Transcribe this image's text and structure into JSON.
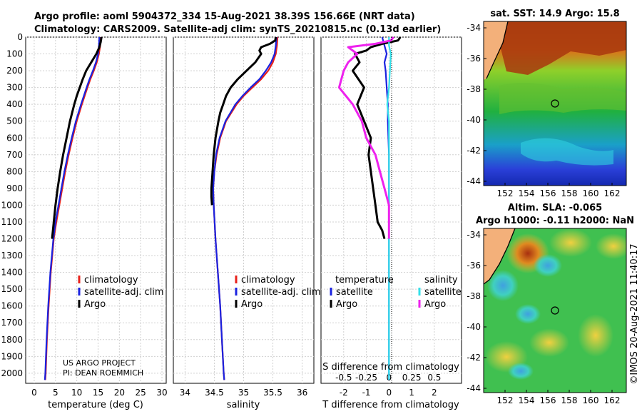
{
  "header": {
    "line1": "Argo profile: aoml 5904372_334 15-Aug-2021 38.39S 156.66E (NRT data)",
    "line2": "Climatology: CARS2009. Satellite-adj clim: synTS_20210815.nc (0.13d earlier)"
  },
  "colors": {
    "climatology": "#e8201a",
    "satellite": "#1a22e0",
    "argo": "#000000",
    "sal_satellite": "#33e0ea",
    "sal_argo": "#ee22ee"
  },
  "depth_ticks": [
    "0",
    "100",
    "200",
    "300",
    "400",
    "500",
    "600",
    "700",
    "800",
    "900",
    "1000",
    "1100",
    "1200",
    "1300",
    "1400",
    "1500",
    "1600",
    "1700",
    "1800",
    "1900",
    "2000"
  ],
  "chart_data": [
    {
      "type": "line",
      "name": "temperature",
      "xlabel": "temperature (deg C)",
      "ylabel": "depth",
      "xlim": [
        -2,
        31
      ],
      "ylim": [
        2060,
        0
      ],
      "xticks": [
        "0",
        "5",
        "10",
        "15",
        "20",
        "25",
        "30"
      ],
      "legend": [
        "climatology",
        "satellite-adj. clim",
        "Argo"
      ],
      "series": [
        {
          "name": "climatology",
          "depth": [
            0,
            50,
            100,
            150,
            200,
            250,
            300,
            400,
            500,
            600,
            700,
            800,
            900,
            1000,
            1100,
            1200,
            1400,
            1600,
            1800,
            2000,
            2040
          ],
          "values": [
            15.6,
            15.5,
            15.2,
            14.7,
            14.0,
            13.2,
            12.5,
            11.2,
            10.0,
            9.0,
            8.1,
            7.3,
            6.6,
            5.9,
            5.2,
            4.6,
            3.9,
            3.4,
            3.0,
            2.7,
            2.6
          ]
        },
        {
          "name": "satellite-adj. clim",
          "depth": [
            0,
            50,
            100,
            150,
            200,
            250,
            300,
            400,
            500,
            600,
            700,
            800,
            900,
            1000,
            1100,
            1200,
            1400,
            1600,
            1800,
            2000,
            2040
          ],
          "values": [
            15.3,
            15.2,
            15.0,
            14.5,
            13.8,
            13.0,
            12.3,
            11.0,
            9.8,
            8.8,
            7.9,
            7.1,
            6.4,
            5.7,
            5.0,
            4.5,
            3.8,
            3.3,
            2.9,
            2.6,
            2.5
          ]
        },
        {
          "name": "Argo",
          "depth": [
            0,
            30,
            60,
            100,
            150,
            200,
            250,
            300,
            350,
            400,
            500,
            600,
            700,
            800,
            900,
            1000,
            1100,
            1200
          ],
          "values": [
            15.8,
            15.6,
            15.3,
            14.6,
            13.4,
            12.2,
            11.4,
            10.7,
            10.0,
            9.4,
            8.4,
            7.6,
            6.8,
            6.1,
            5.5,
            5.0,
            4.6,
            4.2
          ]
        }
      ]
    },
    {
      "type": "line",
      "name": "salinity",
      "xlabel": "salinity",
      "ylabel": "depth",
      "xlim": [
        33.8,
        36.2
      ],
      "ylim": [
        2060,
        0
      ],
      "xticks": [
        "34",
        "34.5",
        "35",
        "35.5",
        "36"
      ],
      "legend": [
        "climatology",
        "satellite-adj. clim",
        "Argo"
      ],
      "series": [
        {
          "name": "climatology",
          "depth": [
            0,
            50,
            100,
            150,
            200,
            250,
            300,
            350,
            400,
            500,
            600,
            700,
            800,
            900,
            1000,
            1200,
            1400,
            1600,
            1800,
            2000,
            2040
          ],
          "values": [
            35.58,
            35.57,
            35.55,
            35.5,
            35.42,
            35.3,
            35.15,
            35.0,
            34.88,
            34.7,
            34.6,
            34.54,
            34.5,
            34.48,
            34.49,
            34.52,
            34.56,
            34.6,
            34.63,
            34.66,
            34.67
          ]
        },
        {
          "name": "satellite-adj. clim",
          "depth": [
            0,
            50,
            100,
            150,
            200,
            250,
            300,
            350,
            400,
            500,
            600,
            700,
            800,
            900,
            1000,
            1200,
            1400,
            1600,
            1800,
            2000,
            2040
          ],
          "values": [
            35.56,
            35.55,
            35.53,
            35.47,
            35.38,
            35.27,
            35.12,
            34.98,
            34.86,
            34.69,
            34.59,
            34.53,
            34.5,
            34.48,
            34.49,
            34.52,
            34.56,
            34.6,
            34.63,
            34.66,
            34.67
          ]
        },
        {
          "name": "Argo",
          "depth": [
            0,
            20,
            40,
            60,
            80,
            100,
            150,
            200,
            250,
            300,
            350,
            400,
            450,
            500,
            600,
            700,
            800,
            900,
            950,
            1000
          ],
          "values": [
            35.55,
            35.54,
            35.45,
            35.3,
            35.27,
            35.3,
            35.2,
            35.05,
            34.9,
            34.78,
            34.7,
            34.65,
            34.6,
            34.57,
            34.52,
            34.49,
            34.47,
            34.45,
            34.45,
            34.46
          ]
        }
      ]
    },
    {
      "type": "line",
      "name": "difference",
      "xlabel": "T difference from climatology",
      "xlabel2": "S difference from climatology",
      "xlim": [
        -3,
        3.2
      ],
      "ylim": [
        2060,
        0
      ],
      "xticks": [
        "-2",
        "-1",
        "0",
        "1",
        "2"
      ],
      "xticks2": [
        "-0.5",
        "-0.25",
        "0",
        "0.25",
        "0.5"
      ],
      "legend_headers": [
        "temperature",
        "salinity"
      ],
      "legend": [
        "satellite",
        "Argo",
        "satellite",
        "Argo"
      ],
      "series": [
        {
          "name": "T satellite",
          "depth": [
            0,
            50,
            100,
            150,
            200,
            300,
            400,
            500,
            700,
            1000,
            1500,
            2000,
            2040
          ],
          "values": [
            -0.3,
            -0.2,
            -0.1,
            -0.2,
            -0.15,
            -0.1,
            -0.05,
            -0.05,
            0,
            0,
            0,
            0,
            0
          ]
        },
        {
          "name": "T Argo",
          "depth": [
            0,
            20,
            40,
            60,
            80,
            100,
            150,
            200,
            300,
            400,
            500,
            600,
            700,
            800,
            900,
            1000,
            1100,
            1150,
            1200
          ],
          "values": [
            0.5,
            0.4,
            -0.3,
            -0.8,
            -1.0,
            -1.5,
            -1.3,
            -1.6,
            -1.1,
            -1.4,
            -1.1,
            -0.8,
            -0.9,
            -0.8,
            -0.7,
            -0.6,
            -0.5,
            -0.3,
            -0.2
          ]
        },
        {
          "name": "S satellite",
          "depth": [
            0,
            50,
            100,
            200,
            300,
            400,
            500,
            700,
            1000,
            1500,
            2000,
            2040
          ],
          "values": [
            0,
            0,
            0.02,
            0.01,
            0,
            -0.02,
            0,
            0,
            0,
            0,
            0,
            0
          ]
        },
        {
          "name": "S Argo",
          "depth": [
            0,
            20,
            40,
            60,
            100,
            150,
            200,
            300,
            400,
            500,
            600,
            700,
            800,
            900,
            1000,
            1100,
            1200
          ],
          "values": [
            0.05,
            0.02,
            -0.15,
            -0.45,
            -0.35,
            -0.45,
            -0.5,
            -0.55,
            -0.4,
            -0.3,
            -0.25,
            -0.15,
            -0.1,
            -0.05,
            0,
            0,
            0
          ]
        }
      ]
    }
  ],
  "annotations": {
    "project": "US ARGO PROJECT",
    "pi": "PI: DEAN ROEMMICH"
  },
  "sst_map": {
    "title": "sat. SST: 14.9 Argo: 15.8",
    "lon_ticks": [
      "152",
      "154",
      "156",
      "158",
      "160",
      "162"
    ],
    "lat_ticks": [
      "-34",
      "-36",
      "-38",
      "-40",
      "-42",
      "-44"
    ]
  },
  "sla_map": {
    "title1": "Altim. SLA: -0.065",
    "title2": "Argo h1000: -0.11 h2000: NaN",
    "lon_ticks": [
      "152",
      "154",
      "156",
      "158",
      "160",
      "162"
    ],
    "lat_ticks": [
      "-34",
      "-36",
      "-38",
      "-40",
      "-42",
      "-44"
    ]
  },
  "stamp": "©IMOS 20-Aug-2021 11:40:17"
}
